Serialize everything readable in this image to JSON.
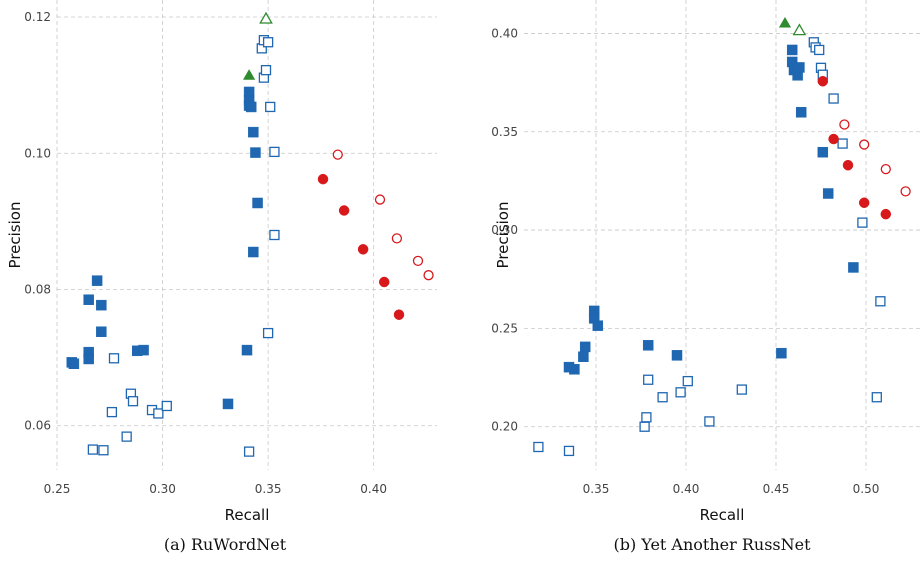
{
  "chart_data": [
    {
      "type": "scatter",
      "caption": "(a) RuWordNet",
      "xlabel": "Recall",
      "ylabel": "Precision",
      "xlim": [
        0.25,
        0.43
      ],
      "ylim": [
        0.0535,
        0.1225
      ],
      "xticks": [
        0.25,
        0.3,
        0.35,
        0.4
      ],
      "xtick_labels": [
        "0.25",
        "0.30",
        "0.35",
        "0.40"
      ],
      "yticks": [
        0.06,
        0.08,
        0.1,
        0.12
      ],
      "ytick_labels": [
        "0.06",
        "0.08",
        "0.10",
        "0.12"
      ],
      "grid": true,
      "series": [
        {
          "marker": "square-filled",
          "color": "#1f67b1",
          "points": [
            [
              0.257,
              0.0693
            ],
            [
              0.258,
              0.0691
            ],
            [
              0.265,
              0.0785
            ],
            [
              0.265,
              0.0708
            ],
            [
              0.265,
              0.0698
            ],
            [
              0.269,
              0.0813
            ],
            [
              0.271,
              0.0777
            ],
            [
              0.271,
              0.0738
            ],
            [
              0.288,
              0.071
            ],
            [
              0.291,
              0.0711
            ],
            [
              0.331,
              0.0632
            ],
            [
              0.34,
              0.0711
            ],
            [
              0.341,
              0.109
            ],
            [
              0.341,
              0.1078
            ],
            [
              0.341,
              0.107
            ],
            [
              0.342,
              0.1068
            ],
            [
              0.343,
              0.1031
            ],
            [
              0.343,
              0.0855
            ],
            [
              0.344,
              0.1001
            ],
            [
              0.345,
              0.0927
            ]
          ]
        },
        {
          "marker": "square-open",
          "color": "#1f67b1",
          "points": [
            [
              0.267,
              0.0565
            ],
            [
              0.272,
              0.0564
            ],
            [
              0.276,
              0.062
            ],
            [
              0.277,
              0.0699
            ],
            [
              0.283,
              0.0584
            ],
            [
              0.285,
              0.0647
            ],
            [
              0.286,
              0.0636
            ],
            [
              0.295,
              0.0623
            ],
            [
              0.298,
              0.0618
            ],
            [
              0.302,
              0.0629
            ],
            [
              0.341,
              0.0562
            ],
            [
              0.347,
              0.1154
            ],
            [
              0.348,
              0.1111
            ],
            [
              0.348,
              0.1166
            ],
            [
              0.349,
              0.1122
            ],
            [
              0.35,
              0.1163
            ],
            [
              0.35,
              0.0736
            ],
            [
              0.351,
              0.1068
            ],
            [
              0.353,
              0.1002
            ],
            [
              0.353,
              0.088
            ]
          ]
        },
        {
          "marker": "circle-filled",
          "color": "#d7191c",
          "points": [
            [
              0.376,
              0.0962
            ],
            [
              0.386,
              0.0916
            ],
            [
              0.395,
              0.0859
            ],
            [
              0.405,
              0.0811
            ],
            [
              0.412,
              0.0763
            ]
          ]
        },
        {
          "marker": "circle-open",
          "color": "#d7191c",
          "points": [
            [
              0.383,
              0.0998
            ],
            [
              0.403,
              0.0932
            ],
            [
              0.411,
              0.0875
            ],
            [
              0.421,
              0.0842
            ],
            [
              0.426,
              0.0821
            ]
          ]
        },
        {
          "marker": "triangle-filled",
          "color": "#2e8b2e",
          "points": [
            [
              0.341,
              0.1114
            ]
          ]
        },
        {
          "marker": "triangle-open",
          "color": "#2e8b2e",
          "points": [
            [
              0.349,
              0.1197
            ]
          ]
        }
      ]
    },
    {
      "type": "scatter",
      "caption": "(b) Yet Another RussNet",
      "xlabel": "Recall",
      "ylabel": "Precision",
      "xlim": [
        0.31,
        0.53
      ],
      "ylim": [
        0.178,
        0.417
      ],
      "xticks": [
        0.35,
        0.4,
        0.45,
        0.5
      ],
      "xtick_labels": [
        "0.35",
        "0.40",
        "0.45",
        "0.50"
      ],
      "yticks": [
        0.2,
        0.25,
        0.3,
        0.35,
        0.4
      ],
      "ytick_labels": [
        "0.20",
        "0.25",
        "0.30",
        "0.35",
        "0.40"
      ],
      "grid": true,
      "series": [
        {
          "marker": "square-filled",
          "color": "#1f67b1",
          "points": [
            [
              0.335,
              0.2303
            ],
            [
              0.338,
              0.2292
            ],
            [
              0.343,
              0.2356
            ],
            [
              0.344,
              0.2406
            ],
            [
              0.349,
              0.2589
            ],
            [
              0.349,
              0.2551
            ],
            [
              0.351,
              0.2514
            ],
            [
              0.379,
              0.2414
            ],
            [
              0.395,
              0.2363
            ],
            [
              0.453,
              0.2374
            ],
            [
              0.459,
              0.3916
            ],
            [
              0.459,
              0.3855
            ],
            [
              0.46,
              0.3814
            ],
            [
              0.462,
              0.3787
            ],
            [
              0.463,
              0.3827
            ],
            [
              0.464,
              0.3599
            ],
            [
              0.476,
              0.3396
            ],
            [
              0.479,
              0.3186
            ],
            [
              0.493,
              0.281
            ]
          ]
        },
        {
          "marker": "square-open",
          "color": "#1f67b1",
          "points": [
            [
              0.318,
              0.1897
            ],
            [
              0.335,
              0.1877
            ],
            [
              0.377,
              0.2
            ],
            [
              0.378,
              0.2048
            ],
            [
              0.379,
              0.2239
            ],
            [
              0.387,
              0.215
            ],
            [
              0.397,
              0.2175
            ],
            [
              0.401,
              0.2232
            ],
            [
              0.413,
              0.2027
            ],
            [
              0.431,
              0.2189
            ],
            [
              0.471,
              0.3955
            ],
            [
              0.472,
              0.3929
            ],
            [
              0.474,
              0.3916
            ],
            [
              0.475,
              0.3825
            ],
            [
              0.476,
              0.379
            ],
            [
              0.482,
              0.3669
            ],
            [
              0.487,
              0.344
            ],
            [
              0.498,
              0.3038
            ],
            [
              0.506,
              0.215
            ],
            [
              0.508,
              0.2638
            ]
          ]
        },
        {
          "marker": "circle-filled",
          "color": "#d7191c",
          "points": [
            [
              0.476,
              0.3757
            ],
            [
              0.482,
              0.3463
            ],
            [
              0.49,
              0.333
            ],
            [
              0.499,
              0.3139
            ],
            [
              0.511,
              0.3081
            ]
          ]
        },
        {
          "marker": "circle-open",
          "color": "#d7191c",
          "points": [
            [
              0.488,
              0.3537
            ],
            [
              0.499,
              0.3435
            ],
            [
              0.511,
              0.331
            ],
            [
              0.522,
              0.3197
            ],
            [
              0.535,
              0.3146
            ]
          ]
        },
        {
          "marker": "triangle-filled",
          "color": "#2e8b2e",
          "points": [
            [
              0.455,
              0.4051
            ]
          ]
        },
        {
          "marker": "triangle-open",
          "color": "#2e8b2e",
          "points": [
            [
              0.463,
              0.4014
            ]
          ]
        }
      ]
    }
  ]
}
